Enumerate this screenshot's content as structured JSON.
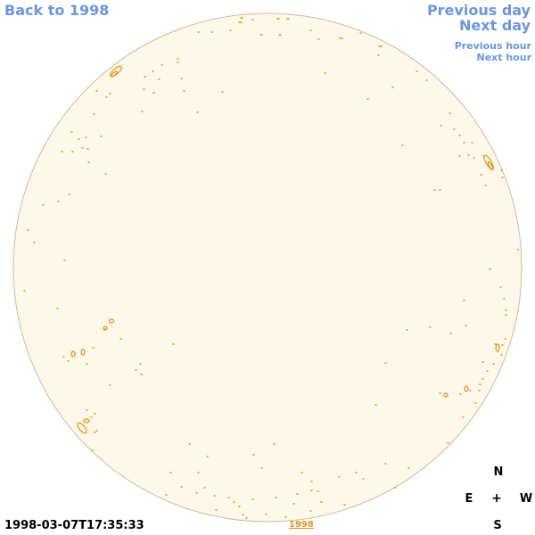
{
  "nav": {
    "back_label": "Back to 1998",
    "previous_day_label": "Previous day",
    "next_day_label": "Next day",
    "previous_hour_label": "Previous hour",
    "next_hour_label": "Next hour"
  },
  "compass": {
    "north": "N",
    "east": "E",
    "center": "+",
    "west": "W",
    "south": "S"
  },
  "timestamp": "1998-03-07T17:35:33",
  "year_link": "1998",
  "colors": {
    "link": "#6b96dc",
    "disk_fill": "#fdf8ea",
    "disk_edge": "#c9bda0",
    "contour": "#e8900c"
  },
  "icons": {
    "sun_disk": "sun-disk-map"
  }
}
